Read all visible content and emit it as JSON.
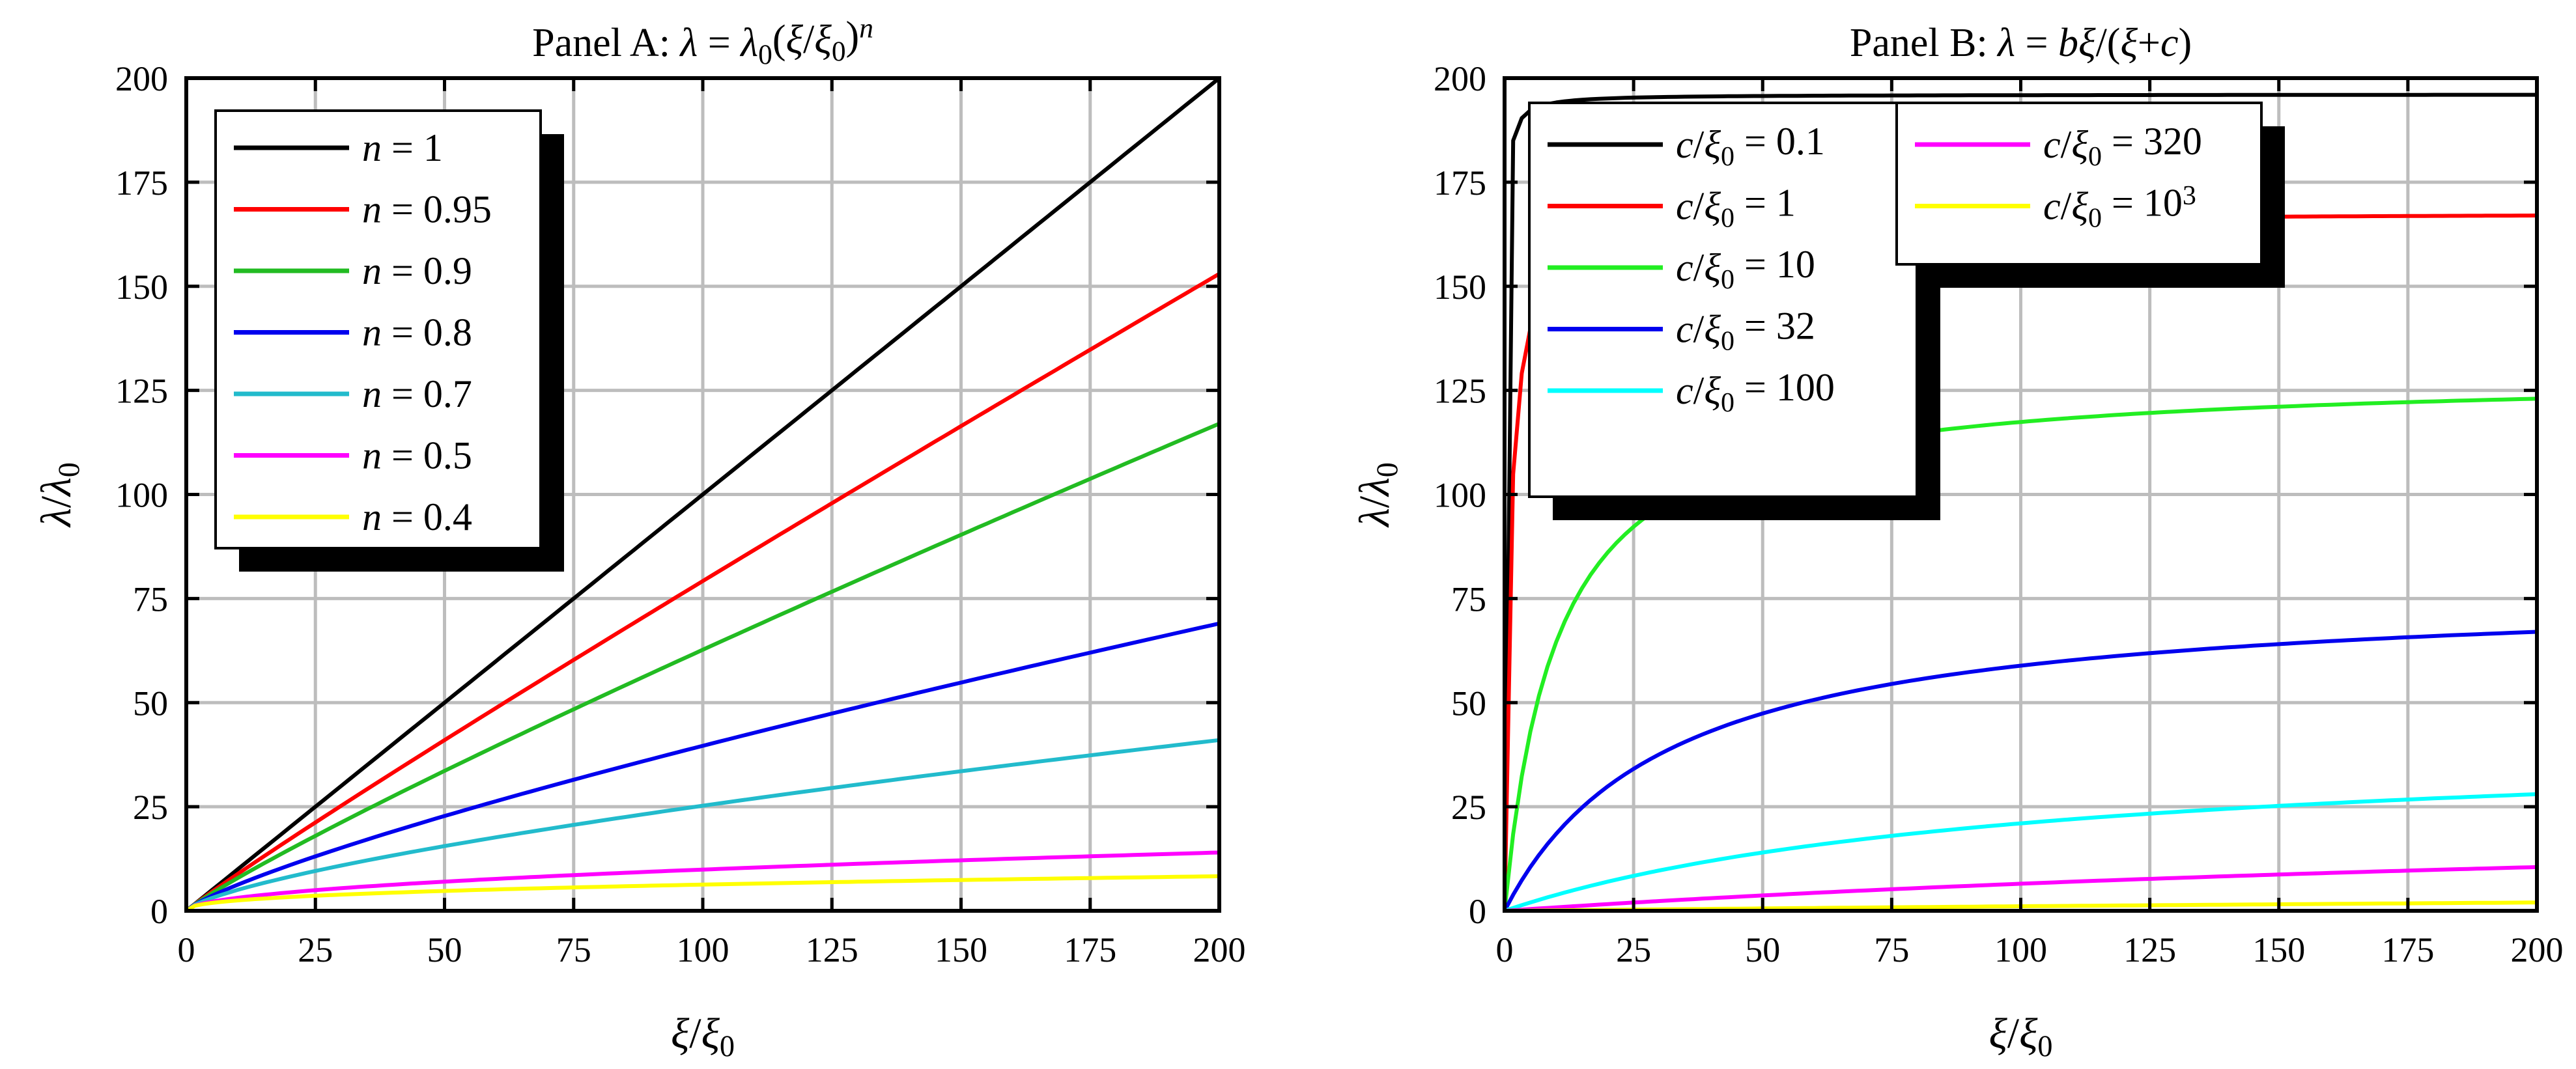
{
  "chart_data": [
    {
      "type": "line",
      "panel": "A",
      "title": {
        "prefix": "Panel A: ",
        "parts": [
          {
            "t": "λ",
            "it": true
          },
          {
            "t": " = "
          },
          {
            "t": "λ",
            "it": true
          },
          {
            "t": "0",
            "sub": true
          },
          {
            "t": "("
          },
          {
            "t": "ξ",
            "it": true
          },
          {
            "t": "/"
          },
          {
            "t": "ξ",
            "it": true
          },
          {
            "t": "0",
            "sub": true
          },
          {
            "t": ")"
          },
          {
            "t": "n",
            "it": true,
            "sup": true
          }
        ]
      },
      "xlabel": [
        {
          "t": "ξ",
          "it": true
        },
        {
          "t": "/"
        },
        {
          "t": "ξ",
          "it": true
        },
        {
          "t": "0",
          "sub": true
        }
      ],
      "ylabel": [
        {
          "t": "λ",
          "it": true
        },
        {
          "t": "/"
        },
        {
          "t": "λ",
          "it": true
        },
        {
          "t": "0",
          "sub": true
        }
      ],
      "xlim": [
        0,
        200
      ],
      "ylim": [
        0,
        200
      ],
      "xticks": [
        0,
        25,
        50,
        75,
        100,
        125,
        150,
        175,
        200
      ],
      "yticks": [
        0,
        25,
        50,
        75,
        100,
        125,
        150,
        175,
        200
      ],
      "grid": true,
      "legend_position": "top-left",
      "model": "power",
      "series": [
        {
          "name": "n = 1",
          "label": [
            {
              "t": "n",
              "it": true
            },
            {
              "t": " = 1"
            }
          ],
          "param": 1,
          "color": "#000000",
          "end_value": 200
        },
        {
          "name": "n = 0.95",
          "label": [
            {
              "t": "n",
              "it": true
            },
            {
              "t": " = 0.95"
            }
          ],
          "param": 0.95,
          "color": "#ff0000",
          "end_value": 153
        },
        {
          "name": "n = 0.9",
          "label": [
            {
              "t": "n",
              "it": true
            },
            {
              "t": " = 0.9"
            }
          ],
          "param": 0.9,
          "color": "#22bb22",
          "end_value": 117
        },
        {
          "name": "n = 0.8",
          "label": [
            {
              "t": "n",
              "it": true
            },
            {
              "t": " = 0.8"
            }
          ],
          "param": 0.8,
          "color": "#0000ee",
          "end_value": 69
        },
        {
          "name": "n = 0.7",
          "label": [
            {
              "t": "n",
              "it": true
            },
            {
              "t": " = 0.7"
            }
          ],
          "param": 0.7,
          "color": "#22bbcc",
          "end_value": 41
        },
        {
          "name": "n = 0.5",
          "label": [
            {
              "t": "n",
              "it": true
            },
            {
              "t": " = 0.5"
            }
          ],
          "param": 0.5,
          "color": "#ff00ff",
          "end_value": 14
        },
        {
          "name": "n = 0.4",
          "label": [
            {
              "t": "n",
              "it": true
            },
            {
              "t": " = 0.4"
            }
          ],
          "param": 0.4,
          "color": "#ffff00",
          "end_value": 8.3
        }
      ]
    },
    {
      "type": "line",
      "panel": "B",
      "title": {
        "prefix": "Panel B: ",
        "parts": [
          {
            "t": "λ",
            "it": true
          },
          {
            "t": " = "
          },
          {
            "t": "bξ",
            "it": true
          },
          {
            "t": "/("
          },
          {
            "t": "ξ",
            "it": true
          },
          {
            "t": "+"
          },
          {
            "t": "c",
            "it": true
          },
          {
            "t": ")"
          }
        ]
      },
      "xlabel": [
        {
          "t": "ξ",
          "it": true
        },
        {
          "t": "/"
        },
        {
          "t": "ξ",
          "it": true
        },
        {
          "t": "0",
          "sub": true
        }
      ],
      "ylabel": [
        {
          "t": "λ",
          "it": true
        },
        {
          "t": "/"
        },
        {
          "t": "λ",
          "it": true
        },
        {
          "t": "0",
          "sub": true
        }
      ],
      "xlim": [
        0,
        200
      ],
      "ylim": [
        0,
        200
      ],
      "xticks": [
        0,
        25,
        50,
        75,
        100,
        125,
        150,
        175,
        200
      ],
      "yticks": [
        0,
        25,
        50,
        75,
        100,
        125,
        150,
        175,
        200
      ],
      "grid": true,
      "legend_position": "top-left",
      "model": "saturation",
      "series": [
        {
          "name": "c/ξ0 = 0.1",
          "label": [
            {
              "t": "c",
              "it": true
            },
            {
              "t": "/"
            },
            {
              "t": "ξ",
              "it": true
            },
            {
              "t": "0",
              "sub": true
            },
            {
              "t": " = 0.1"
            }
          ],
          "param": 0.1,
          "color": "#000000",
          "end_value": 196
        },
        {
          "name": "c/ξ0 = 1",
          "label": [
            {
              "t": "c",
              "it": true
            },
            {
              "t": "/"
            },
            {
              "t": "ξ",
              "it": true
            },
            {
              "t": "0",
              "sub": true
            },
            {
              "t": " = 1"
            }
          ],
          "param": 1,
          "color": "#ff0000",
          "end_value": 167
        },
        {
          "name": "c/ξ0 = 10",
          "label": [
            {
              "t": "c",
              "it": true
            },
            {
              "t": "/"
            },
            {
              "t": "ξ",
              "it": true
            },
            {
              "t": "0",
              "sub": true
            },
            {
              "t": " = 10"
            }
          ],
          "param": 10,
          "color": "#22ee22",
          "end_value": 123
        },
        {
          "name": "c/ξ0 = 32",
          "label": [
            {
              "t": "c",
              "it": true
            },
            {
              "t": "/"
            },
            {
              "t": "ξ",
              "it": true
            },
            {
              "t": "0",
              "sub": true
            },
            {
              "t": " = 32"
            }
          ],
          "param": 32,
          "color": "#0000ee",
          "end_value": 67
        },
        {
          "name": "c/ξ0 = 100",
          "label": [
            {
              "t": "c",
              "it": true
            },
            {
              "t": "/"
            },
            {
              "t": "ξ",
              "it": true
            },
            {
              "t": "0",
              "sub": true
            },
            {
              "t": " = 100"
            }
          ],
          "param": 100,
          "color": "#00ffff",
          "end_value": 28
        },
        {
          "name": "c/ξ0 = 320",
          "label": [
            {
              "t": "c",
              "it": true
            },
            {
              "t": "/"
            },
            {
              "t": "ξ",
              "it": true
            },
            {
              "t": "0",
              "sub": true
            },
            {
              "t": " = 320"
            }
          ],
          "param": 320,
          "color": "#ff00ff",
          "end_value": 10.5
        },
        {
          "name": "c/ξ0 = 10^3",
          "label": [
            {
              "t": "c",
              "it": true
            },
            {
              "t": "/"
            },
            {
              "t": "ξ",
              "it": true
            },
            {
              "t": "0",
              "sub": true
            },
            {
              "t": " = 10"
            },
            {
              "t": "3",
              "sup": true
            }
          ],
          "param": 1000,
          "color": "#ffff00",
          "end_value": 2
        }
      ]
    }
  ]
}
